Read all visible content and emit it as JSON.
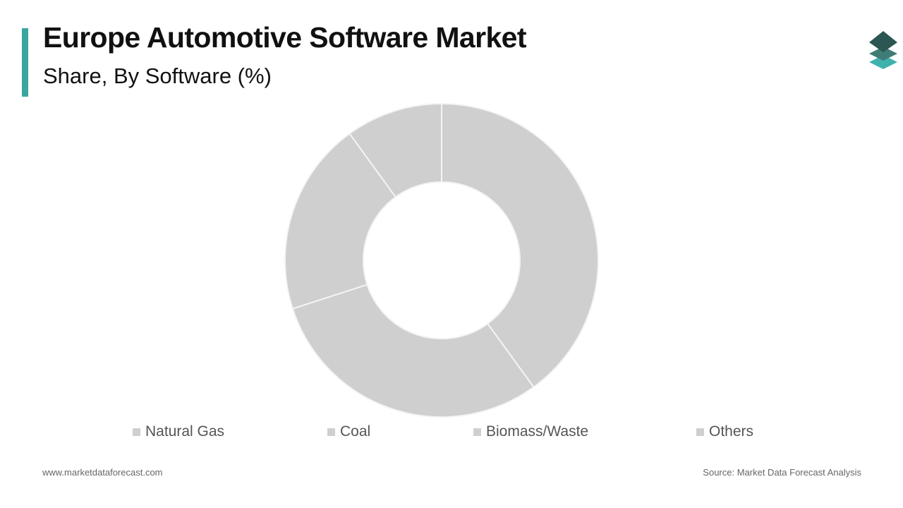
{
  "header": {
    "title": "Europe Automotive Software Market",
    "subtitle": "Share, By Software (%)"
  },
  "brand": {
    "accent_color": "#3aa6a0",
    "logo_icon": "stacked-layers-icon"
  },
  "chart_data": {
    "type": "pie",
    "style": "donut",
    "categories": [
      "Natural Gas",
      "Coal",
      "Biomass/Waste",
      "Others"
    ],
    "values": [
      40,
      30,
      20,
      10
    ],
    "colors": [
      "#d0cfcf",
      "#d0cfcf",
      "#d0cfcf",
      "#d0cfcf"
    ],
    "legend_position": "bottom"
  },
  "footer": {
    "website": "www.marketdataforecast.com",
    "source": "Source: Market Data Forecast Analysis"
  }
}
